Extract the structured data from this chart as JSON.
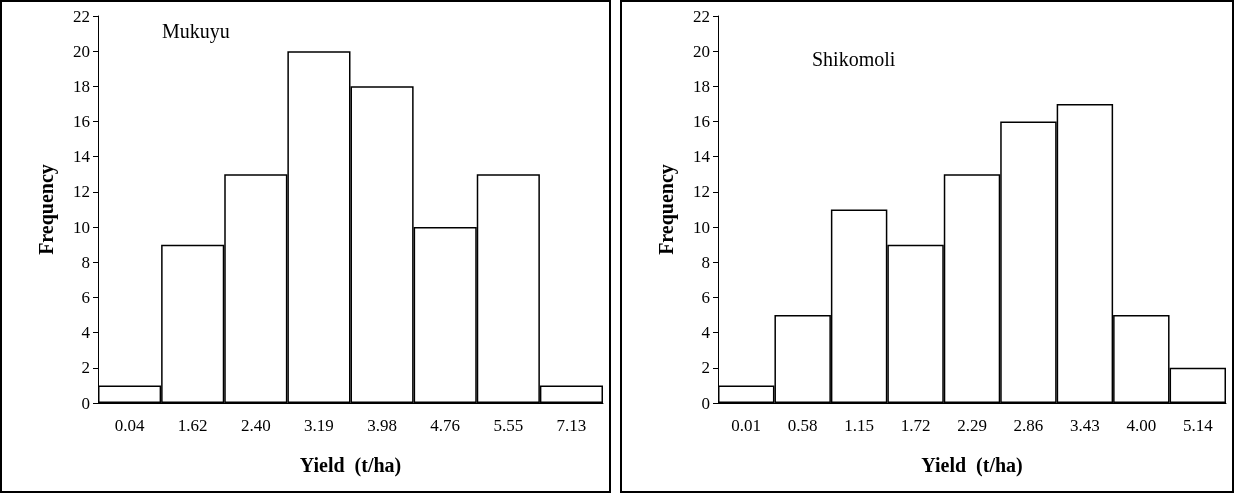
{
  "chart_data": [
    {
      "type": "bar",
      "title": "Mukuyu",
      "xlabel": "Yield  (t/ha)",
      "ylabel": "Frequency",
      "categories": [
        "0.04",
        "1.62",
        "2.40",
        "3.19",
        "3.98",
        "4.76",
        "5.55",
        "7.13"
      ],
      "values": [
        1,
        9,
        13,
        20,
        18,
        10,
        13,
        1
      ],
      "color": "#ffffff",
      "ylim": [
        0,
        22
      ],
      "yticks": [
        0,
        2,
        4,
        6,
        8,
        10,
        12,
        14,
        16,
        18,
        20,
        22
      ]
    },
    {
      "type": "bar",
      "title": "Shikomoli",
      "xlabel": "Yield  (t/ha)",
      "ylabel": "Frequency",
      "categories": [
        "0.01",
        "0.58",
        "1.15",
        "1.72",
        "2.29",
        "2.86",
        "3.43",
        "4.00",
        "5.14"
      ],
      "values": [
        1,
        5,
        11,
        9,
        13,
        16,
        17,
        5,
        2
      ],
      "color": "#ffffff",
      "ylim": [
        0,
        22
      ],
      "yticks": [
        0,
        2,
        4,
        6,
        8,
        10,
        12,
        14,
        16,
        18,
        20,
        22
      ]
    }
  ]
}
